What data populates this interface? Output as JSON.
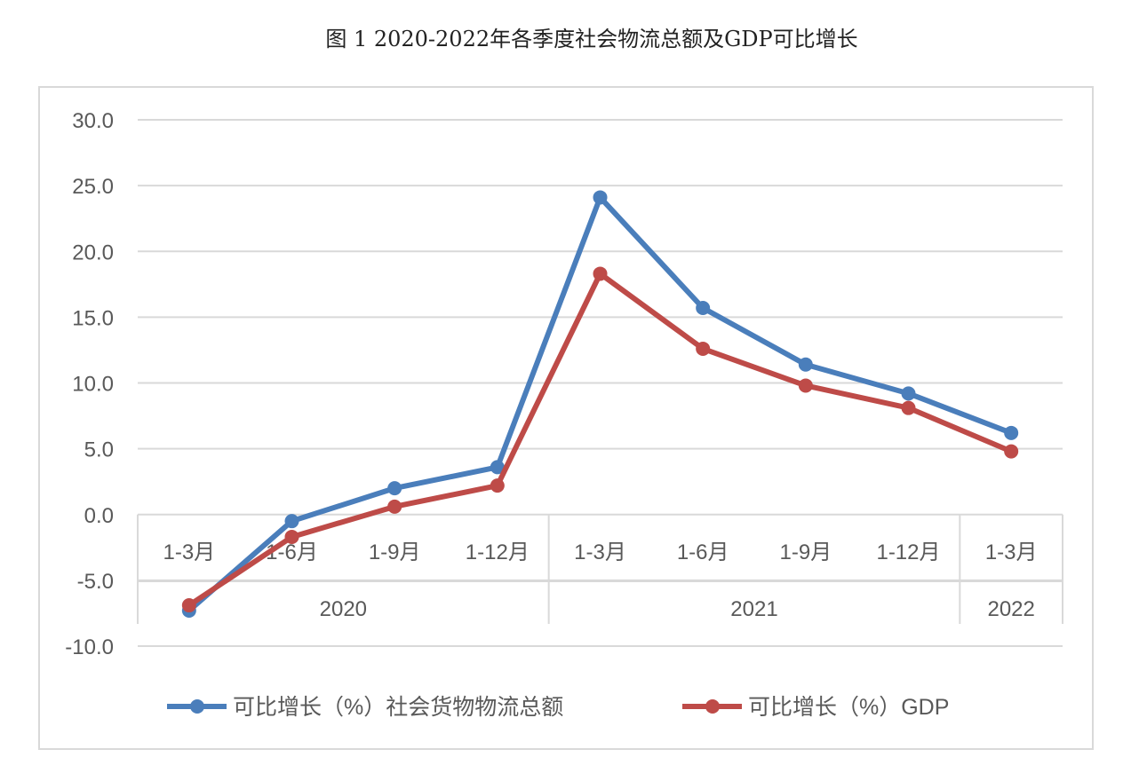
{
  "title": "图 1  2020-2022年各季度社会物流总额及GDP可比增长",
  "chart_data": {
    "type": "line",
    "title": "图 1  2020-2022年各季度社会物流总额及GDP可比增长",
    "categories": [
      "1-3月",
      "1-6月",
      "1-9月",
      "1-12月",
      "1-3月",
      "1-6月",
      "1-9月",
      "1-12月",
      "1-3月"
    ],
    "groups": [
      {
        "label": "2020",
        "span": 4
      },
      {
        "label": "2021",
        "span": 4
      },
      {
        "label": "2022",
        "span": 1
      }
    ],
    "ylim": [
      -10,
      30
    ],
    "yticks": [
      "-10.0",
      "-5.0",
      "0.0",
      "5.0",
      "10.0",
      "15.0",
      "20.0",
      "25.0",
      "30.0"
    ],
    "ytick_values": [
      -10,
      -5,
      0,
      5,
      10,
      15,
      20,
      25,
      30
    ],
    "grid": true,
    "legend_position": "bottom",
    "series": [
      {
        "name": "可比增长（%）社会货物物流总额",
        "color": "#4a7ebb",
        "values": [
          -7.3,
          -0.5,
          2.0,
          3.6,
          24.1,
          15.7,
          11.4,
          9.2,
          6.2
        ]
      },
      {
        "name": "可比增长（%）GDP",
        "color": "#be4b48",
        "values": [
          -6.9,
          -1.7,
          0.6,
          2.2,
          18.3,
          12.6,
          9.8,
          8.1,
          4.8
        ]
      }
    ]
  }
}
